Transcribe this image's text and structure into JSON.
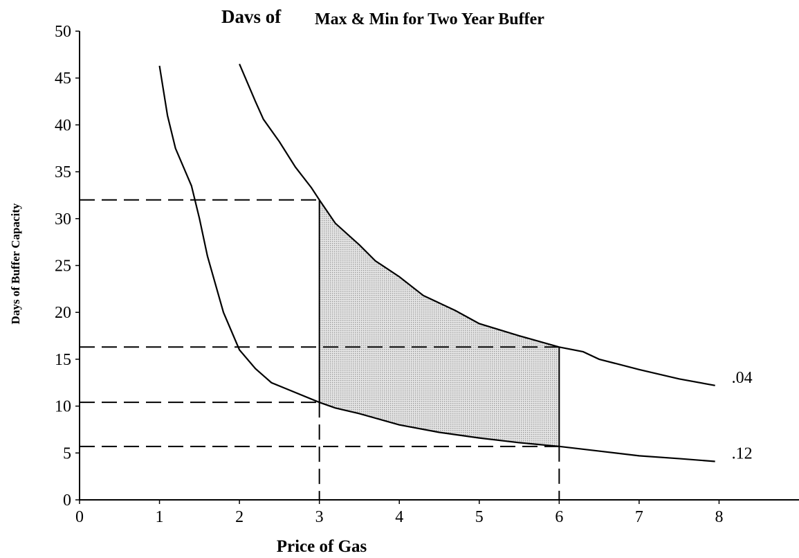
{
  "chart_data": {
    "type": "line",
    "title_left": "Davs of",
    "title": "Max & Min for Two Year Buffer",
    "xlabel": "Price of Gas",
    "ylabel": "Days of Buffer Capacity",
    "xlim": [
      0,
      9
    ],
    "ylim": [
      0,
      50
    ],
    "x_ticks": [
      0,
      1,
      2,
      3,
      4,
      5,
      6,
      7,
      8
    ],
    "y_ticks": [
      0,
      5,
      10,
      15,
      20,
      25,
      30,
      35,
      40,
      45,
      50
    ],
    "grid": false,
    "series": [
      {
        "name": ".04",
        "x": [
          2.0,
          2.2,
          2.3,
          2.5,
          2.7,
          2.9,
          3.0,
          3.2,
          3.5,
          3.7,
          4.0,
          4.3,
          4.7,
          5.0,
          5.5,
          6.0,
          6.3,
          6.5,
          7.0,
          7.5,
          7.95
        ],
        "y": [
          46.5,
          42.5,
          40.6,
          38.2,
          35.5,
          33.3,
          32.0,
          29.5,
          27.2,
          25.5,
          23.8,
          21.8,
          20.2,
          18.8,
          17.5,
          16.3,
          15.8,
          15.0,
          13.9,
          12.9,
          12.2
        ]
      },
      {
        "name": ".12",
        "x": [
          1.0,
          1.1,
          1.2,
          1.4,
          1.5,
          1.6,
          1.8,
          2.0,
          2.2,
          2.4,
          2.6,
          3.0,
          3.2,
          3.5,
          4.0,
          4.5,
          5.0,
          5.5,
          6.0,
          6.5,
          7.0,
          7.5,
          7.95
        ],
        "y": [
          46.3,
          41.0,
          37.5,
          33.5,
          30.0,
          26.0,
          20.0,
          16.0,
          14.0,
          12.5,
          11.8,
          10.4,
          9.8,
          9.2,
          8.0,
          7.2,
          6.6,
          6.1,
          5.7,
          5.2,
          4.7,
          4.4,
          4.1
        ]
      }
    ],
    "shaded_region": {
      "x_from": 3,
      "x_to": 6
    },
    "reference_lines": [
      {
        "y": 32.0,
        "x_to": 3
      },
      {
        "y": 16.3,
        "x_to": 6
      },
      {
        "y": 10.4,
        "x_to": 3
      },
      {
        "y": 5.7,
        "x_to": 6
      }
    ],
    "reference_verticals": [
      {
        "x": 3,
        "y_to": 10.4
      },
      {
        "x": 6,
        "y_to": 5.7
      }
    ]
  }
}
